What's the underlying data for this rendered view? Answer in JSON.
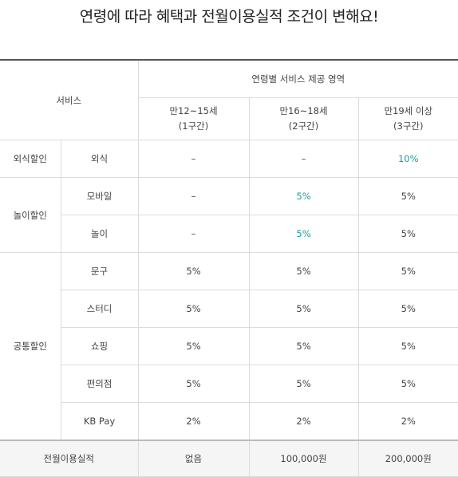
{
  "title": "연령에 따라 혜택과 전월이용실적 조건이 변해요!",
  "header": {
    "service": "서비스",
    "range": "연령별 서비스 제공 영역",
    "ages": [
      {
        "age": "만12~15세",
        "tier": "(1구간)"
      },
      {
        "age": "만16~18세",
        "tier": "(2구간)"
      },
      {
        "age": "만19세 이상",
        "tier": "(3구간)"
      }
    ]
  },
  "groups": [
    {
      "name": "외식할인",
      "rows": [
        {
          "item": "외식",
          "v1": "–",
          "v2": "–",
          "v3": "10%"
        }
      ]
    },
    {
      "name": "놀이할인",
      "rows": [
        {
          "item": "모바일",
          "v1": "–",
          "v2": "5%",
          "v3": "5%"
        },
        {
          "item": "놀이",
          "v1": "–",
          "v2": "5%",
          "v3": "5%"
        }
      ]
    },
    {
      "name": "공통할인",
      "rows": [
        {
          "item": "문구",
          "v1": "5%",
          "v2": "5%",
          "v3": "5%"
        },
        {
          "item": "스터디",
          "v1": "5%",
          "v2": "5%",
          "v3": "5%"
        },
        {
          "item": "쇼핑",
          "v1": "5%",
          "v2": "5%",
          "v3": "5%"
        },
        {
          "item": "편의점",
          "v1": "5%",
          "v2": "5%",
          "v3": "5%"
        },
        {
          "item": "KB Pay",
          "v1": "2%",
          "v2": "2%",
          "v3": "2%"
        }
      ]
    }
  ],
  "total": {
    "label": "전월이용실적",
    "v1": "없음",
    "v2": "100,000원",
    "v3": "200,000원"
  },
  "colors": {
    "highlight": "#1a9e9a",
    "border": "#dcdcdc",
    "total_bg": "#f5f5f5"
  }
}
